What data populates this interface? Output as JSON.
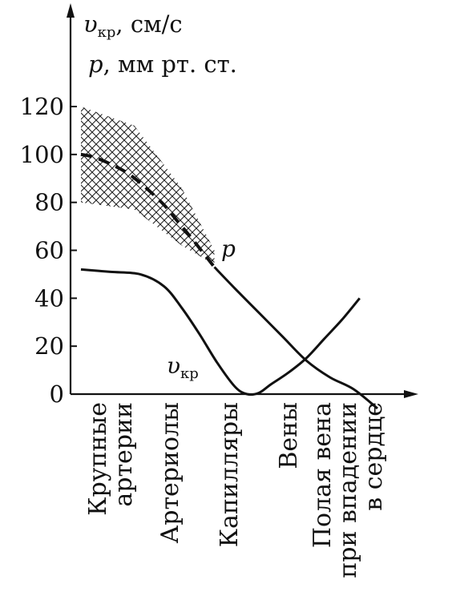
{
  "chart_data": {
    "type": "line",
    "y_axis_labels": {
      "line1": {
        "symbol": "υ",
        "sub": "кр",
        "unit": ",  см/с"
      },
      "line2": {
        "symbol": "p",
        "unit": ", мм рт. ст."
      }
    },
    "yticks": [
      "0",
      "20",
      "40",
      "60",
      "80",
      "100",
      "120"
    ],
    "ylim": [
      0,
      120
    ],
    "categories": [
      [
        "Крупные",
        "артерии"
      ],
      [
        "Артериолы"
      ],
      [
        "Капилляры"
      ],
      [
        "Вены"
      ],
      [
        "Полая вена",
        "при впадении",
        "в сердце"
      ]
    ],
    "series": [
      {
        "name": "p",
        "style": "dashed-then-solid",
        "x": [
          -0.5,
          -0.3,
          0,
          0.3,
          0.6,
          0.9,
          1.1,
          1.4,
          1.75,
          2.1,
          2.5,
          2.9,
          3.3,
          3.7,
          4.1,
          4.5
        ],
        "y": [
          100,
          99,
          96,
          92,
          86,
          79,
          73,
          64,
          53,
          44,
          34,
          24,
          14,
          7,
          2,
          -6
        ]
      },
      {
        "name": "υкр",
        "sub": "кр",
        "style": "solid",
        "x": [
          -0.5,
          0,
          0.5,
          0.9,
          1.2,
          1.5,
          1.8,
          2.1,
          2.3,
          2.5,
          2.7,
          3.0,
          3.3,
          3.6,
          3.9,
          4.2
        ],
        "y": [
          52,
          51,
          50,
          45,
          36,
          25,
          13,
          3,
          0,
          0.5,
          4,
          9,
          15,
          23,
          31,
          40
        ]
      }
    ],
    "band": {
      "x": [
        -0.5,
        0.4,
        1.2,
        1.75
      ],
      "upper": [
        120,
        112,
        86,
        60
      ],
      "lower": [
        80,
        77,
        62,
        54
      ]
    }
  }
}
